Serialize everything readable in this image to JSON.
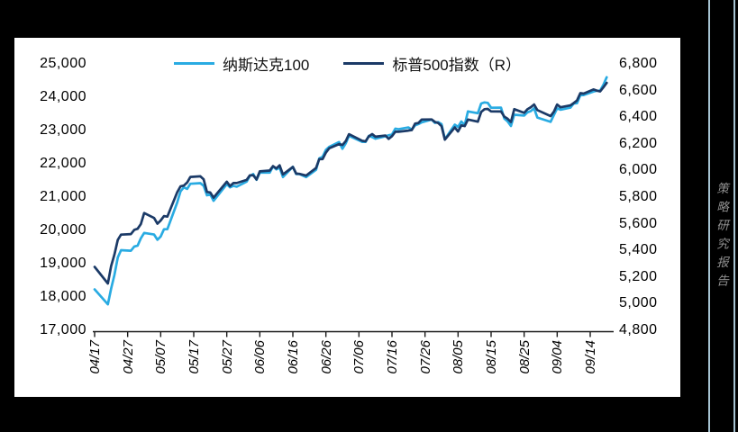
{
  "page": {
    "background": "#000000",
    "panel_background": "#ffffff"
  },
  "side_strip": {
    "text": "策略研究报告",
    "rule_color": "#a7c3d2",
    "text_color": "#8f8f8f"
  },
  "legend": [
    {
      "label": "纳斯达克100",
      "color": "#29ABE2"
    },
    {
      "label": "标普500指数（R）",
      "color": "#1B3A67"
    }
  ],
  "chart_data": {
    "type": "line",
    "title": "",
    "xlabel": "",
    "ylabel_left": "",
    "ylabel_right": "",
    "grid": false,
    "legend_position": "top-center",
    "x": [
      "04/17",
      "04/21",
      "04/22",
      "04/23",
      "04/24",
      "04/25",
      "04/28",
      "04/29",
      "04/30",
      "05/01",
      "05/02",
      "05/05",
      "05/06",
      "05/07",
      "05/08",
      "05/09",
      "05/12",
      "05/13",
      "05/14",
      "05/15",
      "05/16",
      "05/19",
      "05/20",
      "05/21",
      "05/22",
      "05/23",
      "05/27",
      "05/28",
      "05/29",
      "05/30",
      "06/02",
      "06/03",
      "06/04",
      "06/05",
      "06/06",
      "06/09",
      "06/10",
      "06/11",
      "06/12",
      "06/13",
      "06/16",
      "06/17",
      "06/18",
      "06/20",
      "06/23",
      "06/24",
      "06/25",
      "06/26",
      "06/27",
      "06/30",
      "07/01",
      "07/02",
      "07/03",
      "07/07",
      "07/08",
      "07/09",
      "07/10",
      "07/11",
      "07/14",
      "07/15",
      "07/16",
      "07/17",
      "07/18",
      "07/21",
      "07/22",
      "07/23",
      "07/24",
      "07/25",
      "07/28",
      "07/29",
      "07/30",
      "07/31",
      "08/01",
      "08/04",
      "08/05",
      "08/06",
      "08/07",
      "08/08",
      "08/11",
      "08/12",
      "08/13",
      "08/14",
      "08/15",
      "08/18",
      "08/19",
      "08/20",
      "08/21",
      "08/22",
      "08/25",
      "08/26",
      "08/27",
      "08/28",
      "08/29",
      "09/02",
      "09/03",
      "09/04",
      "09/05",
      "09/08",
      "09/09",
      "09/10",
      "09/11",
      "09/12",
      "09/15",
      "09/16",
      "09/17",
      "09/18",
      "09/19"
    ],
    "series": [
      {
        "name": "纳斯达克100",
        "axis": "left",
        "color": "#29ABE2",
        "stroke_width": 2.7,
        "values": [
          18258,
          17808,
          18276,
          18693,
          19214,
          19432,
          19417,
          19544,
          19571,
          19789,
          19951,
          19903,
          19747,
          19844,
          20063,
          20061,
          20868,
          21198,
          21319,
          21273,
          21427,
          21447,
          21367,
          21080,
          21112,
          20916,
          21415,
          21319,
          21364,
          21341,
          21492,
          21662,
          21720,
          21547,
          21762,
          21762,
          21949,
          21860,
          21913,
          21631,
          21937,
          21720,
          21719,
          21626,
          21845,
          22190,
          22237,
          22447,
          22534,
          22679,
          22478,
          22641,
          22867,
          22685,
          22684,
          22864,
          22829,
          22780,
          22855,
          22884,
          22907,
          23081,
          23065,
          23119,
          23053,
          23183,
          23219,
          23272,
          23357,
          23254,
          23278,
          23218,
          22763,
          23202,
          23135,
          23298,
          23193,
          23601,
          23547,
          23839,
          23871,
          23857,
          23712,
          23713,
          23387,
          23302,
          23161,
          23499,
          23475,
          23573,
          23608,
          23695,
          23415,
          23287,
          23491,
          23693,
          23652,
          23713,
          23839,
          23847,
          24087,
          24092,
          24197,
          24222,
          24224,
          24405,
          24626
        ]
      },
      {
        "name": "标普500指数（R）",
        "axis": "right",
        "color": "#1B3A67",
        "stroke_width": 2.7,
        "values": [
          5283,
          5158,
          5288,
          5376,
          5485,
          5525,
          5529,
          5561,
          5569,
          5604,
          5687,
          5650,
          5607,
          5631,
          5664,
          5660,
          5844,
          5887,
          5893,
          5916,
          5958,
          5963,
          5940,
          5845,
          5842,
          5803,
          5922,
          5889,
          5912,
          5912,
          5936,
          5970,
          5971,
          5939,
          6000,
          6006,
          6039,
          6022,
          6045,
          5977,
          6033,
          5983,
          5981,
          5968,
          6025,
          6092,
          6092,
          6141,
          6173,
          6205,
          6198,
          6227,
          6279,
          6230,
          6226,
          6263,
          6280,
          6260,
          6269,
          6244,
          6264,
          6297,
          6297,
          6306,
          6310,
          6359,
          6363,
          6389,
          6390,
          6371,
          6363,
          6339,
          6238,
          6330,
          6299,
          6345,
          6340,
          6389,
          6373,
          6446,
          6467,
          6469,
          6450,
          6449,
          6411,
          6395,
          6370,
          6467,
          6439,
          6466,
          6481,
          6502,
          6460,
          6415,
          6448,
          6502,
          6481,
          6495,
          6513,
          6532,
          6587,
          6584,
          6615,
          6606,
          6600,
          6632,
          6664
        ]
      }
    ],
    "left_axis": {
      "min": 17000,
      "max": 25000,
      "step": 1000,
      "tick_labels": [
        "17,000",
        "18,000",
        "19,000",
        "20,000",
        "21,000",
        "22,000",
        "23,000",
        "24,000",
        "25,000"
      ]
    },
    "right_axis": {
      "min": 4800,
      "max": 6800,
      "step": 200,
      "tick_labels": [
        "4,800",
        "5,000",
        "5,200",
        "5,400",
        "5,600",
        "5,800",
        "6,000",
        "6,200",
        "6,400",
        "6,600",
        "6,800"
      ]
    },
    "x_axis": {
      "tick_labels": [
        "04/17",
        "04/27",
        "05/07",
        "05/17",
        "05/27",
        "06/06",
        "06/16",
        "06/26",
        "07/06",
        "07/16",
        "07/26",
        "08/05",
        "08/15",
        "08/25",
        "09/04",
        "09/14"
      ],
      "tick_interval_days": 10
    }
  }
}
